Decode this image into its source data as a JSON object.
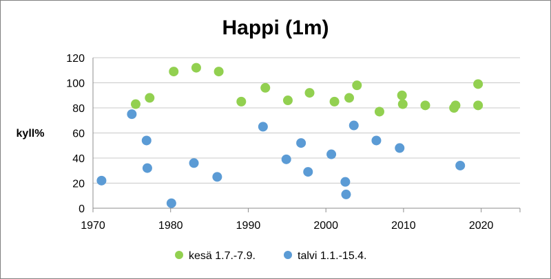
{
  "chart_data": {
    "type": "scatter",
    "title": "Happi (1m)",
    "xlabel": "",
    "ylabel": "kyll%",
    "xlim": [
      1970,
      2025
    ],
    "ylim": [
      0,
      120
    ],
    "x_ticks": [
      1970,
      1980,
      1990,
      2000,
      2010,
      2020
    ],
    "y_ticks": [
      0,
      20,
      40,
      60,
      80,
      100,
      120
    ],
    "grid": "horizontal",
    "legend": "bottom",
    "series": [
      {
        "name": "kesä 1.7.-7.9.",
        "color": "#92d050",
        "points": [
          {
            "x": 1975.5,
            "y": 83
          },
          {
            "x": 1977.3,
            "y": 88
          },
          {
            "x": 1980.4,
            "y": 109
          },
          {
            "x": 1983.3,
            "y": 112
          },
          {
            "x": 1986.2,
            "y": 109
          },
          {
            "x": 1989.1,
            "y": 85
          },
          {
            "x": 1992.2,
            "y": 96
          },
          {
            "x": 1995.1,
            "y": 86
          },
          {
            "x": 1997.9,
            "y": 92
          },
          {
            "x": 2001.1,
            "y": 85
          },
          {
            "x": 2003.0,
            "y": 88
          },
          {
            "x": 2004.0,
            "y": 98
          },
          {
            "x": 2006.9,
            "y": 77
          },
          {
            "x": 2009.8,
            "y": 90
          },
          {
            "x": 2009.9,
            "y": 83
          },
          {
            "x": 2012.8,
            "y": 82
          },
          {
            "x": 2016.5,
            "y": 80
          },
          {
            "x": 2016.7,
            "y": 82
          },
          {
            "x": 2019.6,
            "y": 99
          },
          {
            "x": 2019.6,
            "y": 82
          }
        ]
      },
      {
        "name": "talvi 1.1.-15.4.",
        "color": "#5b9bd5",
        "points": [
          {
            "x": 1971.1,
            "y": 22
          },
          {
            "x": 1975.0,
            "y": 75
          },
          {
            "x": 1976.9,
            "y": 54
          },
          {
            "x": 1977.0,
            "y": 32
          },
          {
            "x": 1980.1,
            "y": 4
          },
          {
            "x": 1983.0,
            "y": 36
          },
          {
            "x": 1986.0,
            "y": 25
          },
          {
            "x": 1991.9,
            "y": 65
          },
          {
            "x": 1994.9,
            "y": 39
          },
          {
            "x": 1996.8,
            "y": 52
          },
          {
            "x": 1997.7,
            "y": 29
          },
          {
            "x": 2000.7,
            "y": 43
          },
          {
            "x": 2002.5,
            "y": 21
          },
          {
            "x": 2002.6,
            "y": 11
          },
          {
            "x": 2003.6,
            "y": 66
          },
          {
            "x": 2006.5,
            "y": 54
          },
          {
            "x": 2009.5,
            "y": 48
          },
          {
            "x": 2017.3,
            "y": 34
          }
        ]
      }
    ]
  }
}
